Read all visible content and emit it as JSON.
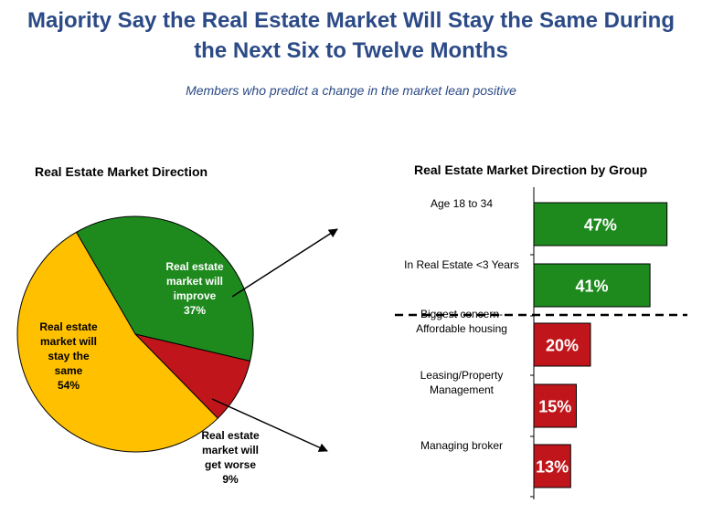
{
  "header": {
    "title_line1": "Majority Say the Real Estate Market Will Stay the Same During",
    "title_line2": "the Next Six to Twelve Months",
    "subtitle": "Members who predict a change in the market lean positive"
  },
  "colors": {
    "title": "#2b4a86",
    "same": "#ffc000",
    "improve": "#1e8a1e",
    "worse": "#c0161b",
    "outline": "#000000"
  },
  "chart_data": [
    {
      "type": "pie",
      "title": "Real Estate Market Direction",
      "slices": [
        {
          "label_lines": [
            "Real estate",
            "market will",
            "improve"
          ],
          "value_label": "37%",
          "value": 37,
          "color": "#1e8a1e"
        },
        {
          "label_lines": [
            "Real estate",
            "market will",
            "get worse"
          ],
          "value_label": "9%",
          "value": 9,
          "color": "#c0161b"
        },
        {
          "label_lines": [
            "Real estate",
            "market will",
            "stay the",
            "same"
          ],
          "value_label": "54%",
          "value": 54,
          "color": "#ffc000"
        }
      ]
    },
    {
      "type": "bar",
      "orientation": "horizontal",
      "title": "Real Estate Market Direction by Group",
      "categories": [
        {
          "lines": [
            "Age 18 to 34"
          ],
          "value": 47,
          "label": "47%",
          "color": "#1e8a1e"
        },
        {
          "lines": [
            "In Real Estate <3 Years"
          ],
          "value": 41,
          "label": "41%",
          "color": "#1e8a1e"
        },
        {
          "lines": [
            "Biggest concern-",
            "Affordable housing"
          ],
          "value": 20,
          "label": "20%",
          "color": "#c0161b"
        },
        {
          "lines": [
            "Leasing/Property",
            "Management"
          ],
          "value": 15,
          "label": "15%",
          "color": "#c0161b"
        },
        {
          "lines": [
            "Managing broker"
          ],
          "value": 13,
          "label": "13%",
          "color": "#c0161b"
        }
      ],
      "divider_after_index": 1,
      "grid": false
    }
  ]
}
